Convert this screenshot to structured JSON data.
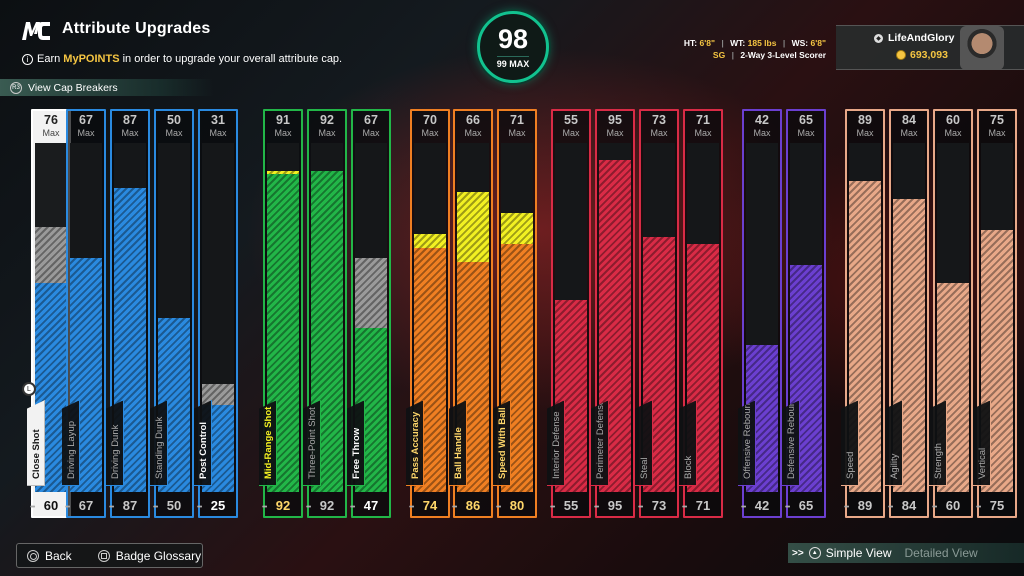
{
  "header": {
    "title": "Attribute Upgrades",
    "earn_prefix": "Earn ",
    "earn_highlight": "MyPOINTS",
    "earn_suffix": " in order to upgrade your overall attribute cap.",
    "cap_breakers": "View Cap Breakers"
  },
  "overall": {
    "value": "98",
    "max_label": "99 MAX"
  },
  "player": {
    "ht_label": "HT:",
    "ht": "6'8\"",
    "wt_label": "WT:",
    "wt": "185 lbs",
    "ws_label": "WS:",
    "ws": "6'8\"",
    "position": "SG",
    "archetype": "2-Way 3-Level Scorer"
  },
  "user": {
    "gamertag": "LifeAndGlory",
    "vc": "693,093"
  },
  "max_label": "Max",
  "colors": {
    "white": "#e8e8e8",
    "blue": "#2a8ae0",
    "green": "#22b648",
    "orange": "#f07f22",
    "red": "#d92b46",
    "purple": "#6b3fd0",
    "tan": "#e8a888",
    "gray": "#9a9a9a",
    "yellow": "#f2f022"
  },
  "attributes": [
    {
      "name": "Close Shot",
      "current": 60,
      "max": 76,
      "group": "white",
      "pending": 16
    },
    {
      "name": "Driving Layup",
      "current": 67,
      "max": 67,
      "group": "blue",
      "pending": 0
    },
    {
      "name": "Driving Dunk",
      "current": 87,
      "max": 87,
      "group": "blue",
      "pending": 0
    },
    {
      "name": "Standing Dunk",
      "current": 50,
      "max": 50,
      "group": "blue",
      "pending": 0
    },
    {
      "name": "Post Control",
      "current": 25,
      "max": 31,
      "group": "blue",
      "pending": 6
    },
    {
      "name": "Mid-Range Shot",
      "current": 92,
      "max": 91,
      "group": "green",
      "pending": 0
    },
    {
      "name": "Three-Point Shot",
      "current": 92,
      "max": 92,
      "group": "green",
      "pending": 0
    },
    {
      "name": "Free Throw",
      "current": 47,
      "max": 67,
      "group": "green",
      "pending": 20
    },
    {
      "name": "Pass Accuracy",
      "current": 74,
      "max": 70,
      "group": "orange",
      "pending": 0
    },
    {
      "name": "Ball Handle",
      "current": 86,
      "max": 66,
      "group": "orange",
      "pending": 0
    },
    {
      "name": "Speed With Ball",
      "current": 80,
      "max": 71,
      "group": "orange",
      "pending": 0
    },
    {
      "name": "Interior Defense",
      "current": 55,
      "max": 55,
      "group": "red",
      "pending": 0
    },
    {
      "name": "Perimeter Defense",
      "current": 95,
      "max": 95,
      "group": "red",
      "pending": 0
    },
    {
      "name": "Steal",
      "current": 73,
      "max": 73,
      "group": "red",
      "pending": 0
    },
    {
      "name": "Block",
      "current": 71,
      "max": 71,
      "group": "red",
      "pending": 0
    },
    {
      "name": "Offensive Rebound",
      "current": 42,
      "max": 42,
      "group": "purple",
      "pending": 0
    },
    {
      "name": "Defensive Rebound",
      "current": 65,
      "max": 65,
      "group": "purple",
      "pending": 0
    },
    {
      "name": "Speed",
      "current": 89,
      "max": 89,
      "group": "tan",
      "pending": 0
    },
    {
      "name": "Agility",
      "current": 84,
      "max": 84,
      "group": "tan",
      "pending": 0
    },
    {
      "name": "Strength",
      "current": 60,
      "max": 60,
      "group": "tan",
      "pending": 0
    },
    {
      "name": "Vertical",
      "current": 75,
      "max": 75,
      "group": "tan",
      "pending": 0
    }
  ],
  "footer": {
    "back": "Back",
    "glossary": "Badge Glossary",
    "simple_view": "Simple View",
    "detailed_view": "Detailed View"
  }
}
